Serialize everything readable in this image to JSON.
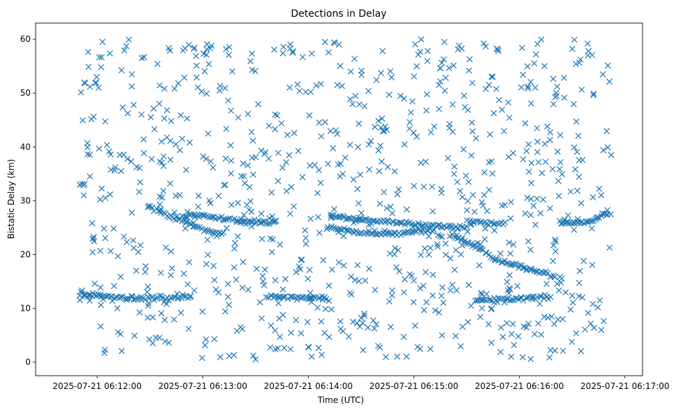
{
  "chart_data": {
    "type": "scatter",
    "title": "Detections in Delay",
    "xlabel": "Time (UTC)",
    "ylabel": "Bistatic Delay (km)",
    "marker": "x",
    "color": "#1f77b4",
    "grid": false,
    "x_unit": "seconds since 2025-07-21 06:11:30",
    "xlim": [
      -5,
      340
    ],
    "ylim": [
      -2.5,
      63
    ],
    "xticks": [
      {
        "value": 30,
        "label": "2025-07-21 06:12:00"
      },
      {
        "value": 90,
        "label": "2025-07-21 06:13:00"
      },
      {
        "value": 150,
        "label": "2025-07-21 06:14:00"
      },
      {
        "value": 210,
        "label": "2025-07-21 06:15:00"
      },
      {
        "value": 270,
        "label": "2025-07-21 06:16:00"
      },
      {
        "value": 330,
        "label": "2025-07-21 06:17:00"
      }
    ],
    "yticks": [
      0,
      10,
      20,
      30,
      40,
      50,
      60
    ],
    "x_data_range": [
      20,
      323
    ],
    "tracks": [
      {
        "name": "track-a",
        "points": [
          [
            20,
            33.2
          ],
          [
            22,
            33.1
          ],
          [
            23,
            33.0
          ]
        ]
      },
      {
        "name": "track-b",
        "points": [
          [
            58,
            29.0
          ],
          [
            62,
            28.6
          ],
          [
            66,
            27.9
          ],
          [
            70,
            27.2
          ],
          [
            74,
            26.8
          ],
          [
            78,
            26.3
          ],
          [
            82,
            25.8
          ],
          [
            86,
            25.2
          ],
          [
            90,
            24.7
          ],
          [
            94,
            24.3
          ],
          [
            98,
            24.0
          ],
          [
            102,
            23.9
          ]
        ]
      },
      {
        "name": "track-c",
        "points": [
          [
            78,
            27.0
          ],
          [
            84,
            27.2
          ],
          [
            90,
            27.4
          ],
          [
            96,
            26.9
          ],
          [
            102,
            26.6
          ],
          [
            108,
            26.3
          ],
          [
            114,
            26.1
          ],
          [
            120,
            25.9
          ],
          [
            126,
            25.8
          ],
          [
            132,
            26.0
          ]
        ]
      },
      {
        "name": "track-d",
        "points": [
          [
            162,
            27.3
          ],
          [
            170,
            26.9
          ],
          [
            178,
            26.6
          ],
          [
            186,
            26.3
          ],
          [
            194,
            26.1
          ],
          [
            202,
            25.9
          ],
          [
            210,
            25.7
          ],
          [
            218,
            25.5
          ],
          [
            226,
            25.3
          ],
          [
            234,
            25.1
          ],
          [
            240,
            25.0
          ]
        ]
      },
      {
        "name": "track-e",
        "points": [
          [
            160,
            24.8
          ],
          [
            170,
            24.6
          ],
          [
            180,
            24.2
          ],
          [
            190,
            24.0
          ],
          [
            200,
            23.9
          ],
          [
            210,
            24.3
          ],
          [
            220,
            24.6
          ]
        ]
      },
      {
        "name": "track-f",
        "points": [
          [
            230,
            23.6
          ],
          [
            240,
            22.4
          ],
          [
            248,
            21.0
          ],
          [
            256,
            19.2
          ],
          [
            264,
            18.3
          ],
          [
            272,
            17.6
          ],
          [
            280,
            16.9
          ],
          [
            286,
            16.3
          ],
          [
            290,
            16.1
          ]
        ]
      },
      {
        "name": "track-g",
        "points": [
          [
            240,
            26.0
          ],
          [
            248,
            25.9
          ],
          [
            256,
            25.8
          ],
          [
            262,
            25.8
          ]
        ]
      },
      {
        "name": "track-h",
        "points": [
          [
            292,
            26.1
          ],
          [
            298,
            26.0
          ],
          [
            304,
            26.0
          ],
          [
            310,
            26.2
          ],
          [
            316,
            27.0
          ],
          [
            322,
            27.9
          ]
        ]
      },
      {
        "name": "track-i",
        "points": [
          [
            20,
            12.4
          ],
          [
            28,
            12.5
          ],
          [
            36,
            12.3
          ],
          [
            44,
            12.0
          ],
          [
            52,
            11.8
          ],
          [
            60,
            11.9
          ],
          [
            68,
            12.0
          ],
          [
            76,
            12.0
          ],
          [
            84,
            12.3
          ]
        ]
      },
      {
        "name": "track-j",
        "points": [
          [
            126,
            12.1
          ],
          [
            134,
            12.1
          ],
          [
            142,
            12.0
          ],
          [
            150,
            12.0
          ],
          [
            156,
            11.9
          ],
          [
            162,
            11.9
          ]
        ]
      },
      {
        "name": "track-k",
        "points": [
          [
            244,
            11.6
          ],
          [
            252,
            11.6
          ],
          [
            260,
            11.7
          ],
          [
            268,
            11.8
          ],
          [
            276,
            12.0
          ],
          [
            282,
            12.1
          ],
          [
            288,
            12.1
          ]
        ]
      },
      {
        "name": "track-l",
        "points": [
          [
            20,
            13.6
          ],
          [
            22,
            13.0
          ],
          [
            24,
            12.2
          ],
          [
            26,
            11.6
          ]
        ]
      }
    ],
    "track_point_count": 520,
    "noise_point_count": 880,
    "noise_seed": 20250721
  }
}
